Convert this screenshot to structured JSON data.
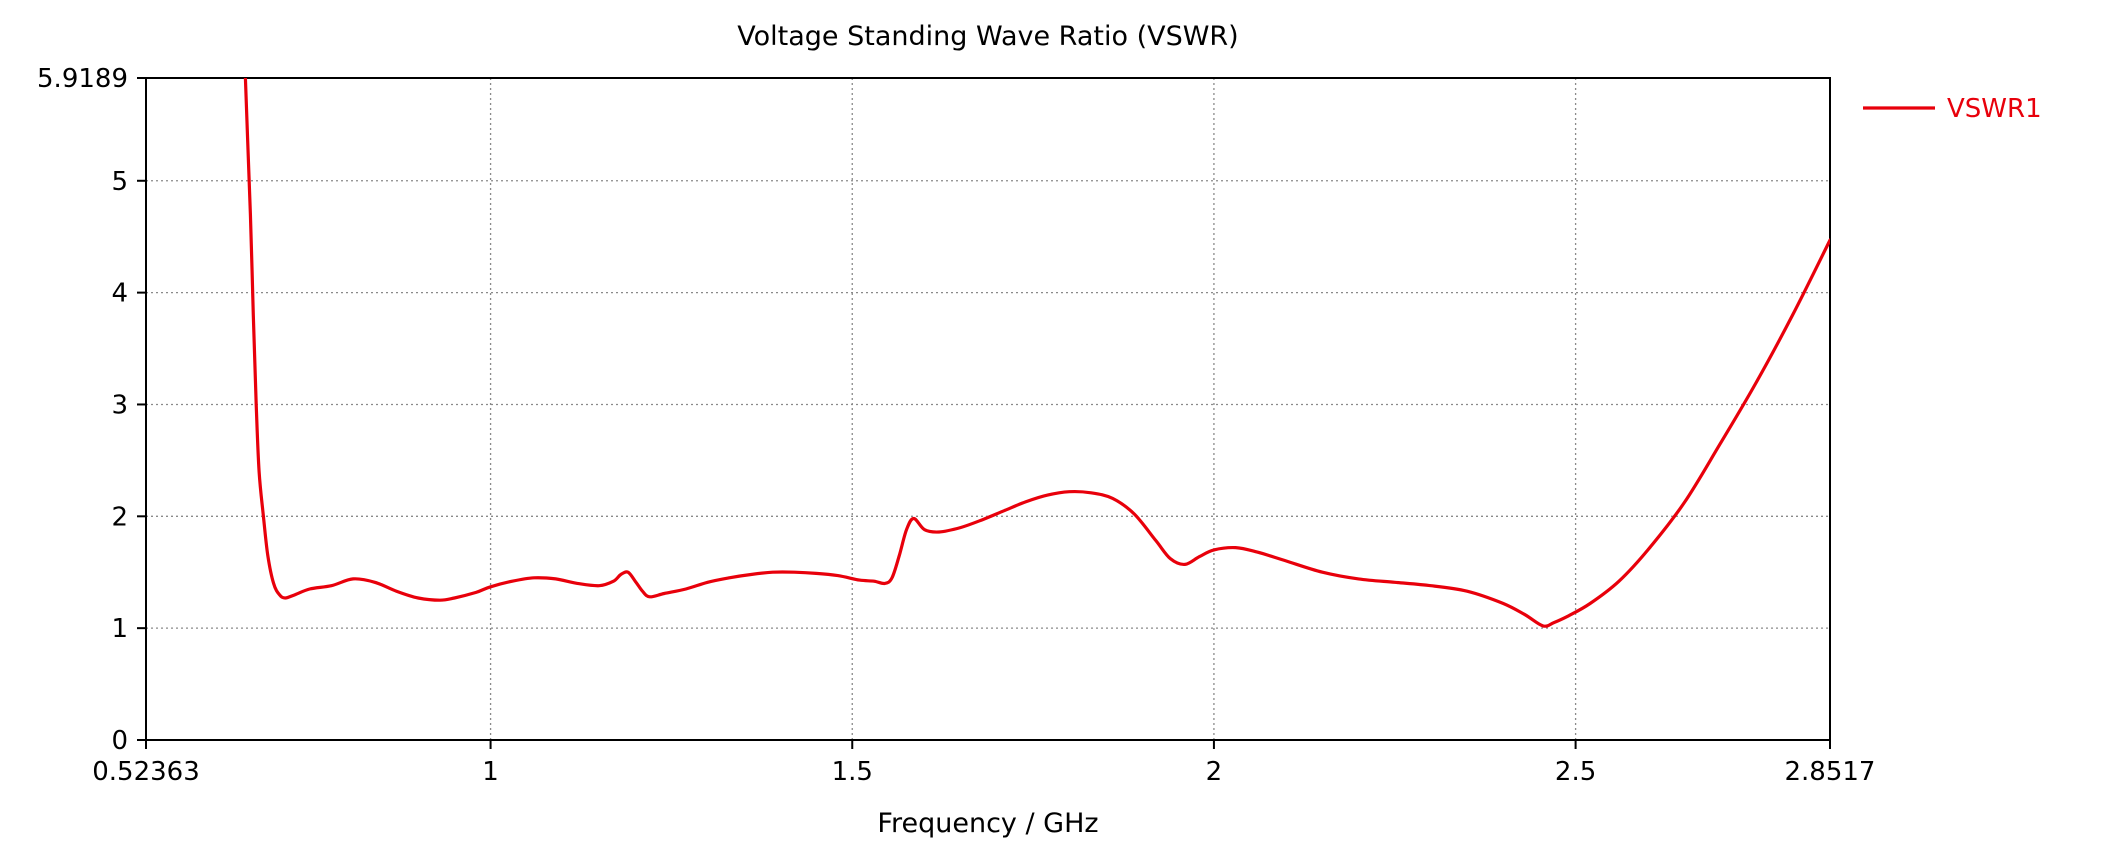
{
  "chart_data": {
    "type": "line",
    "title": "Voltage Standing Wave Ratio (VSWR)",
    "xlabel": "Frequency / GHz",
    "ylabel": "",
    "xlim": [
      0.52363,
      2.8517
    ],
    "ylim": [
      0,
      5.9189
    ],
    "x_ticks": [
      0.52363,
      1,
      1.5,
      2,
      2.5,
      2.8517
    ],
    "x_tick_labels": [
      "0.52363",
      "1",
      "1.5",
      "2",
      "2.5",
      "2.8517"
    ],
    "y_ticks": [
      0,
      1,
      2,
      3,
      4,
      5,
      5.9189
    ],
    "y_tick_labels": [
      "0",
      "1",
      "2",
      "3",
      "4",
      "5",
      "5.9189"
    ],
    "grid": true,
    "legend_position": "top-right",
    "series": [
      {
        "name": "VSWR1",
        "color": "#e8000b",
        "x": [
          0.661,
          0.664,
          0.668,
          0.672,
          0.676,
          0.68,
          0.686,
          0.692,
          0.7,
          0.708,
          0.716,
          0.73,
          0.75,
          0.78,
          0.81,
          0.84,
          0.87,
          0.9,
          0.93,
          0.95,
          0.98,
          1.0,
          1.03,
          1.06,
          1.09,
          1.12,
          1.15,
          1.17,
          1.18,
          1.19,
          1.2,
          1.21,
          1.22,
          1.24,
          1.27,
          1.3,
          1.33,
          1.36,
          1.39,
          1.42,
          1.45,
          1.48,
          1.51,
          1.53,
          1.545,
          1.555,
          1.565,
          1.575,
          1.585,
          1.6,
          1.62,
          1.65,
          1.68,
          1.71,
          1.74,
          1.77,
          1.8,
          1.83,
          1.86,
          1.89,
          1.92,
          1.94,
          1.96,
          1.98,
          2.0,
          2.03,
          2.06,
          2.1,
          2.15,
          2.2,
          2.25,
          2.3,
          2.35,
          2.4,
          2.43,
          2.455,
          2.47,
          2.49,
          2.52,
          2.56,
          2.6,
          2.65,
          2.7,
          2.75,
          2.8,
          2.8517
        ],
        "y": [
          5.9189,
          5.4,
          4.7,
          3.8,
          3.0,
          2.4,
          2.0,
          1.65,
          1.4,
          1.3,
          1.27,
          1.3,
          1.35,
          1.38,
          1.44,
          1.41,
          1.33,
          1.27,
          1.25,
          1.27,
          1.32,
          1.37,
          1.42,
          1.45,
          1.44,
          1.4,
          1.38,
          1.42,
          1.48,
          1.5,
          1.42,
          1.33,
          1.28,
          1.31,
          1.35,
          1.41,
          1.45,
          1.48,
          1.5,
          1.5,
          1.49,
          1.47,
          1.43,
          1.42,
          1.4,
          1.45,
          1.65,
          1.88,
          1.98,
          1.88,
          1.86,
          1.9,
          1.97,
          2.05,
          2.13,
          2.19,
          2.22,
          2.21,
          2.16,
          2.02,
          1.78,
          1.62,
          1.57,
          1.64,
          1.7,
          1.72,
          1.68,
          1.6,
          1.5,
          1.44,
          1.41,
          1.38,
          1.33,
          1.22,
          1.12,
          1.02,
          1.05,
          1.11,
          1.22,
          1.42,
          1.7,
          2.12,
          2.65,
          3.2,
          3.8,
          4.47
        ]
      }
    ]
  }
}
